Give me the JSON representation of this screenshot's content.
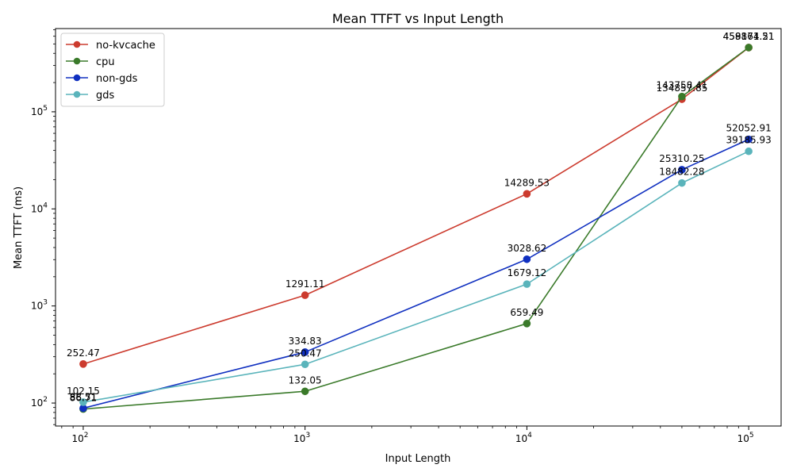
{
  "chart_data": {
    "type": "line",
    "title": "Mean TTFT vs Input Length",
    "xlabel": "Input Length",
    "ylabel": "Mean TTFT (ms)",
    "xscale": "log",
    "yscale": "log",
    "xlim": [
      75,
      140000
    ],
    "ylim": [
      58,
      720000
    ],
    "x_ticks": [
      {
        "value": 100,
        "base": "10",
        "exp": "2"
      },
      {
        "value": 1000,
        "base": "10",
        "exp": "3"
      },
      {
        "value": 10000,
        "base": "10",
        "exp": "4"
      },
      {
        "value": 100000,
        "base": "10",
        "exp": "5"
      }
    ],
    "y_ticks": [
      {
        "value": 100,
        "base": "10",
        "exp": "2"
      },
      {
        "value": 1000,
        "base": "10",
        "exp": "3"
      },
      {
        "value": 10000,
        "base": "10",
        "exp": "4"
      },
      {
        "value": 100000,
        "base": "10",
        "exp": "5"
      }
    ],
    "legend_position": "top-left",
    "grid": false,
    "series": [
      {
        "name": "no-kvcache",
        "color": "#cc3b2e",
        "x": [
          100,
          1000,
          10000,
          50000,
          100000
        ],
        "values": [
          252.47,
          1291.11,
          14289.53,
          134857.85,
          458871.21
        ],
        "labels": [
          "252.47",
          "1291.11",
          "14289.53",
          "134857.85",
          "458871.21"
        ]
      },
      {
        "name": "cpu",
        "color": "#3a7a2a",
        "x": [
          100,
          1000,
          10000,
          50000,
          100000
        ],
        "values": [
          86.71,
          132.05,
          659.49,
          143758.41,
          459164.51
        ],
        "labels": [
          "86.71",
          "132.05",
          "659.49",
          "143758.41",
          "459164.51"
        ]
      },
      {
        "name": "non-gds",
        "color": "#1030c0",
        "x": [
          100,
          1000,
          10000,
          50000,
          100000
        ],
        "values": [
          88.51,
          334.83,
          3028.62,
          25310.25,
          52052.91
        ],
        "labels": [
          "88.51",
          "334.83",
          "3028.62",
          "25310.25",
          "52052.91"
        ]
      },
      {
        "name": "gds",
        "color": "#5ab4bb",
        "x": [
          100,
          1000,
          10000,
          50000,
          100000
        ],
        "values": [
          102.15,
          250.47,
          1679.12,
          18482.28,
          39185.93
        ],
        "labels": [
          "102.15",
          "250.47",
          "1679.12",
          "18482.28",
          "39185.93"
        ]
      }
    ]
  }
}
